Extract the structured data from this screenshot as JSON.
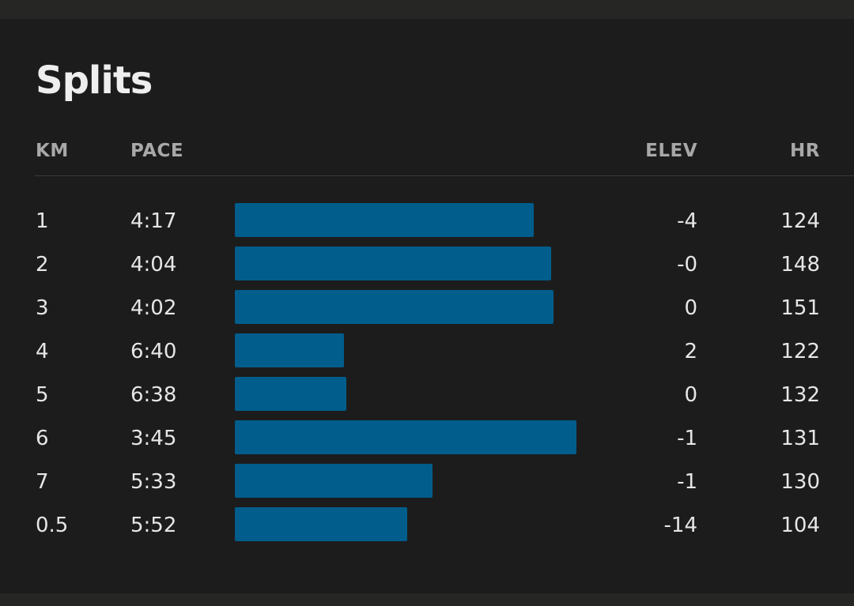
{
  "title": "Splits",
  "columns": {
    "km": "KM",
    "pace": "PACE",
    "elev": "ELEV",
    "hr": "HR"
  },
  "colors": {
    "bar": "#015d8c",
    "background": "#1c1c1c"
  },
  "pace_scale": {
    "min_label": "",
    "max_label": ""
  },
  "splits": [
    {
      "km": "1",
      "pace": "4:17",
      "pace_seconds": 257,
      "elev": "-4",
      "hr": "124"
    },
    {
      "km": "2",
      "pace": "4:04",
      "pace_seconds": 244,
      "elev": "-0",
      "hr": "148"
    },
    {
      "km": "3",
      "pace": "4:02",
      "pace_seconds": 242,
      "elev": "0",
      "hr": "151"
    },
    {
      "km": "4",
      "pace": "6:40",
      "pace_seconds": 400,
      "elev": "2",
      "hr": "122"
    },
    {
      "km": "5",
      "pace": "6:38",
      "pace_seconds": 398,
      "elev": "0",
      "hr": "132"
    },
    {
      "km": "6",
      "pace": "3:45",
      "pace_seconds": 225,
      "elev": "-1",
      "hr": "131"
    },
    {
      "km": "7",
      "pace": "5:33",
      "pace_seconds": 333,
      "elev": "-1",
      "hr": "130"
    },
    {
      "km": "0.5",
      "pace": "5:52",
      "pace_seconds": 352,
      "elev": "-14",
      "hr": "104"
    }
  ]
}
